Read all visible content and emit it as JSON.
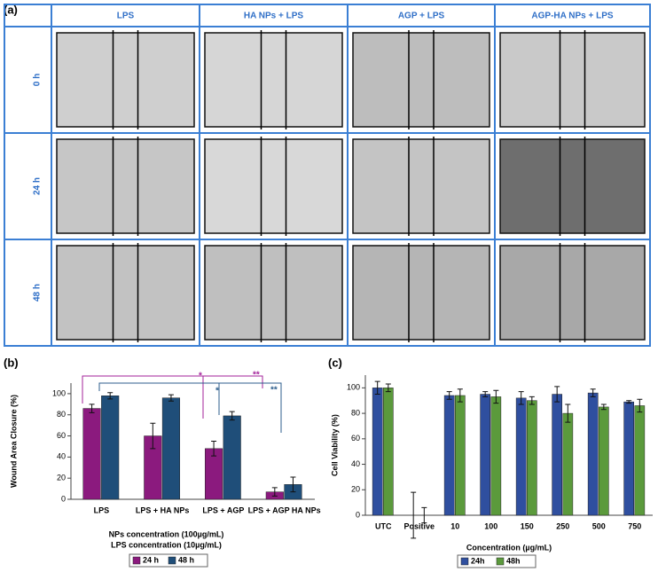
{
  "panel_a": {
    "label": "(a)",
    "columns": [
      "LPS",
      "HA NPs + LPS",
      "AGP + LPS",
      "AGP-HA NPs + LPS"
    ],
    "rows": [
      "0 h",
      "24 h",
      "48 h"
    ]
  },
  "chart_data": [
    {
      "type": "bar",
      "label": "(b)",
      "ylabel": "Wound Area Closure (%)",
      "xlabel": [
        "NPs concentration (100µg/mL)",
        "LPS concentration (10µg/mL)"
      ],
      "categories": [
        "LPS",
        "LPS + HA NPs",
        "LPS + AGP",
        "LPS + AGP HA NPs"
      ],
      "series": [
        {
          "name": "24 h",
          "color": "#8b1a7e",
          "values": [
            86,
            60,
            48,
            7
          ],
          "errors": [
            4,
            12,
            7,
            4
          ]
        },
        {
          "name": "48 h",
          "color": "#1f4e79",
          "values": [
            98,
            96,
            79,
            14
          ],
          "errors": [
            3,
            3,
            4,
            7
          ]
        }
      ],
      "ylim": [
        0,
        110
      ],
      "yticks": [
        0,
        20,
        40,
        60,
        80,
        100
      ],
      "annotations": [
        "*",
        "**",
        "*",
        "**"
      ]
    },
    {
      "type": "bar",
      "label": "(c)",
      "ylabel": "Cell Viability (%)",
      "xlabel": [
        "Concentration (µg/mL)"
      ],
      "categories": [
        "UTC",
        "Positive",
        "10",
        "100",
        "150",
        "250",
        "500",
        "750"
      ],
      "series": [
        {
          "name": "24h",
          "color": "#2f4f9f",
          "values": [
            100,
            0,
            94,
            95,
            92,
            95,
            96,
            89
          ],
          "errors": [
            5,
            18,
            3,
            2,
            5,
            6,
            3,
            1
          ]
        },
        {
          "name": "48h",
          "color": "#5b9a3c",
          "values": [
            100,
            0,
            94,
            93,
            90,
            80,
            85,
            86
          ],
          "errors": [
            3,
            6,
            5,
            5,
            3,
            7,
            2,
            5
          ]
        }
      ],
      "ylim": [
        0,
        110
      ],
      "yticks": [
        0,
        20,
        40,
        60,
        80,
        100
      ]
    }
  ]
}
